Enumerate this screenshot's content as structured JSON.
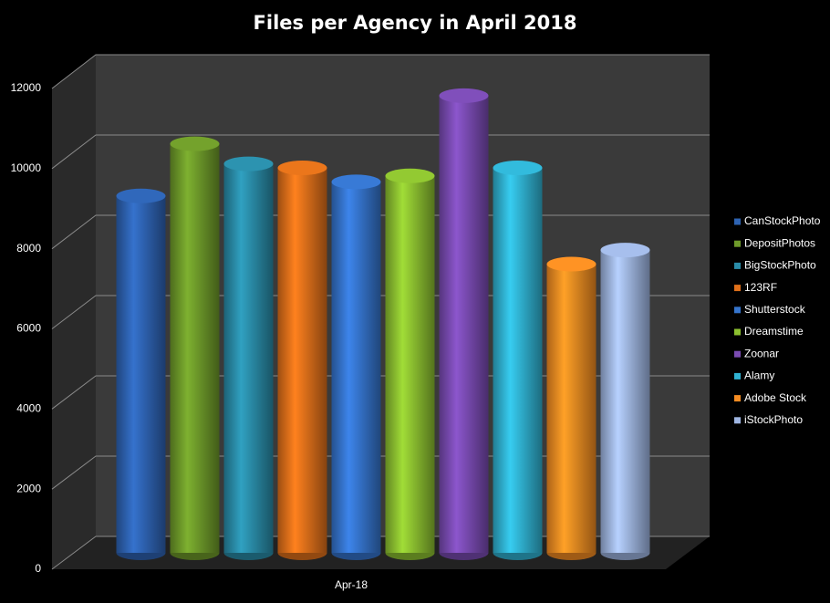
{
  "chart_data": {
    "type": "bar",
    "title": "Files per Agency in April 2018",
    "categories": [
      "Apr-18"
    ],
    "series": [
      {
        "name": "CanStockPhoto",
        "color": "#2e63b2",
        "values": [
          8900
        ]
      },
      {
        "name": "DepositPhotos",
        "color": "#6e9a2a",
        "values": [
          10200
        ]
      },
      {
        "name": "BigStockPhoto",
        "color": "#2a8ca8",
        "values": [
          9700
        ]
      },
      {
        "name": "123RF",
        "color": "#e0701a",
        "values": [
          9600
        ]
      },
      {
        "name": "Shutterstock",
        "color": "#3574cc",
        "values": [
          9250
        ]
      },
      {
        "name": "Dreamstime",
        "color": "#8cc030",
        "values": [
          9400
        ]
      },
      {
        "name": "Zoonar",
        "color": "#7a4bb2",
        "values": [
          11400
        ]
      },
      {
        "name": "Alamy",
        "color": "#30b2d2",
        "values": [
          9600
        ]
      },
      {
        "name": "Adobe Stock",
        "color": "#f58c22",
        "values": [
          7200
        ]
      },
      {
        "name": "iStockPhoto",
        "color": "#9fb6e2",
        "values": [
          7550
        ]
      }
    ],
    "ylim": [
      0,
      12000
    ],
    "yticks": [
      0,
      2000,
      4000,
      6000,
      8000,
      10000,
      12000
    ],
    "grid": true,
    "legend": "right"
  }
}
